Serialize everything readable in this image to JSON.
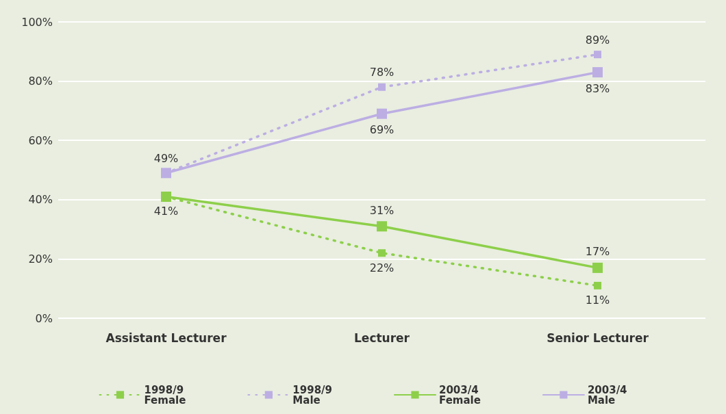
{
  "chart_data": {
    "type": "line",
    "categories": [
      "Assistant Lecturer",
      "Lecturer",
      "Senior Lecturer"
    ],
    "series": [
      {
        "name": "1998/9\nFemale",
        "color": "#8dcf4a",
        "line_style": "dotted",
        "values": [
          41,
          22,
          11
        ],
        "value_labels": [
          "41%",
          "22%",
          "11%"
        ]
      },
      {
        "name": "1998/9\nMale",
        "color": "#bcaee3",
        "line_style": "dotted",
        "values": [
          49,
          78,
          89
        ],
        "value_labels": [
          "49%",
          "78%",
          "89%"
        ]
      },
      {
        "name": "2003/4\nFemale",
        "color": "#8dcf4a",
        "line_style": "solid",
        "values": [
          41,
          31,
          17
        ],
        "value_labels": [
          null,
          "31%",
          "17%"
        ]
      },
      {
        "name": "2003/4\nMale",
        "color": "#bcaee3",
        "line_style": "solid",
        "values": [
          49,
          69,
          83
        ],
        "value_labels": [
          null,
          "69%",
          "83%"
        ]
      }
    ],
    "ylim": [
      0,
      100
    ],
    "yticks": [
      {
        "value": 0,
        "label": "0%"
      },
      {
        "value": 20,
        "label": "20%"
      },
      {
        "value": 40,
        "label": "40%"
      },
      {
        "value": 60,
        "label": "60%"
      },
      {
        "value": 80,
        "label": "80%"
      },
      {
        "value": 100,
        "label": "100%"
      }
    ],
    "grid": "y",
    "legend": "bottom",
    "marker": "square"
  }
}
